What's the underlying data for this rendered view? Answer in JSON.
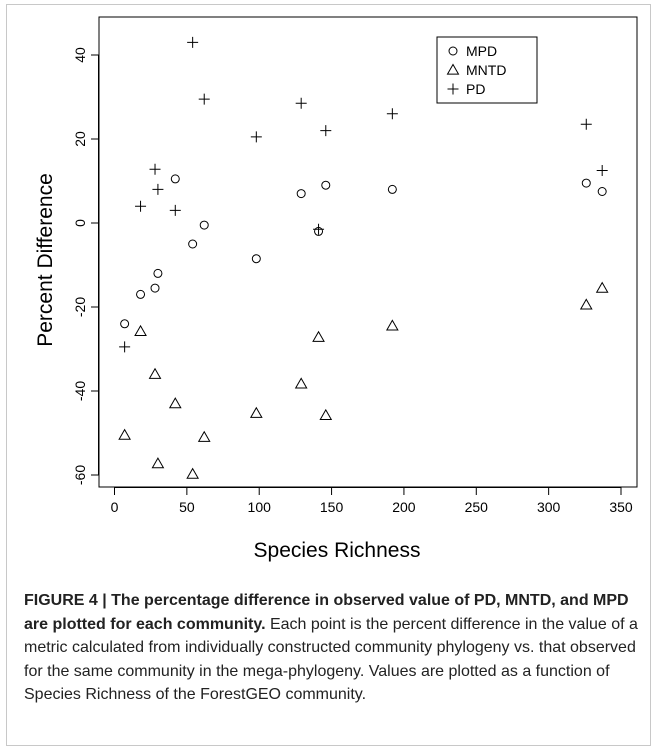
{
  "chart_data": {
    "type": "scatter",
    "xlabel": "Species Richness",
    "ylabel": "Percent Difference",
    "xlim": [
      0,
      350
    ],
    "ylim": [
      -65,
      45
    ],
    "xticks": [
      "0",
      "50",
      "100",
      "150",
      "200",
      "250",
      "300",
      "350"
    ],
    "yticks": [
      "-60",
      "-40",
      "-20",
      "0",
      "20",
      "40"
    ],
    "grid": false,
    "legend_position": "top-right",
    "series": [
      {
        "name": "MPD",
        "marker": "circle",
        "points": [
          [
            7,
            -24
          ],
          [
            18,
            -17
          ],
          [
            28,
            -15.5
          ],
          [
            30,
            -12
          ],
          [
            42,
            10.5
          ],
          [
            54,
            -5
          ],
          [
            62,
            -0.5
          ],
          [
            98,
            -8.5
          ],
          [
            129,
            7
          ],
          [
            141,
            -2
          ],
          [
            146,
            9
          ],
          [
            192,
            8
          ],
          [
            326,
            9.5
          ],
          [
            337,
            7.5
          ]
        ]
      },
      {
        "name": "MNTD",
        "marker": "triangle",
        "points": [
          [
            7,
            -50.5
          ],
          [
            18,
            -25.8
          ],
          [
            28,
            -36
          ],
          [
            30,
            -57.3
          ],
          [
            42,
            -43
          ],
          [
            54,
            -59.8
          ],
          [
            62,
            -51
          ],
          [
            98,
            -45.3
          ],
          [
            129,
            -38.3
          ],
          [
            141,
            -27.2
          ],
          [
            146,
            -45.8
          ],
          [
            192,
            -24.5
          ],
          [
            326,
            -19.5
          ],
          [
            337,
            -15.5
          ]
        ]
      },
      {
        "name": "PD",
        "marker": "plus",
        "points": [
          [
            7,
            -29.5
          ],
          [
            18,
            4
          ],
          [
            28,
            12.8
          ],
          [
            30,
            8
          ],
          [
            42,
            3
          ],
          [
            54,
            43
          ],
          [
            62,
            29.5
          ],
          [
            98,
            20.5
          ],
          [
            129,
            28.5
          ],
          [
            141,
            -1.5
          ],
          [
            146,
            22
          ],
          [
            192,
            26
          ],
          [
            326,
            23.5
          ],
          [
            337,
            12.5
          ]
        ]
      }
    ]
  },
  "caption": {
    "bold": "FIGURE 4 | The percentage difference in observed value of PD, MNTD, and MPD are plotted for each community.",
    "text": " Each point is the percent difference in the value of a metric calculated from individually constructed community phylogeny vs. that observed for the same community in the mega-phylogeny. Values are plotted as a function of Species Richness of the ForestGEO community."
  }
}
